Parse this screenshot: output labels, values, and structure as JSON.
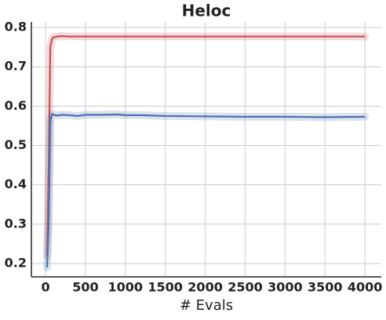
{
  "chart_data": {
    "type": "line",
    "title": "Heloc",
    "xlabel": "# Evals",
    "x": [
      20,
      40,
      60,
      80,
      100,
      150,
      200,
      300,
      400,
      500,
      700,
      900,
      1000,
      1200,
      1500,
      2000,
      2500,
      3000,
      3500,
      4000
    ],
    "series": [
      {
        "color": "#c44e52",
        "values": [
          0.22,
          0.45,
          0.75,
          0.77,
          0.775,
          0.777,
          0.778,
          0.777,
          0.777,
          0.777,
          0.777,
          0.777,
          0.777,
          0.777,
          0.777,
          0.777,
          0.777,
          0.777,
          0.777,
          0.777
        ]
      },
      {
        "color": "#4c72b0",
        "values": [
          0.19,
          0.3,
          0.56,
          0.58,
          0.578,
          0.576,
          0.578,
          0.577,
          0.575,
          0.578,
          0.578,
          0.579,
          0.577,
          0.577,
          0.575,
          0.574,
          0.573,
          0.573,
          0.572,
          0.573
        ]
      }
    ],
    "xlim": [
      -177,
      4205
    ],
    "ylim": [
      0.166,
      0.814
    ],
    "xticks": [
      0,
      500,
      1000,
      1500,
      2000,
      2500,
      3000,
      3500,
      4000
    ],
    "yticks": [
      0.2,
      0.3,
      0.4,
      0.5,
      0.6,
      0.7,
      0.8
    ],
    "grid": true
  }
}
